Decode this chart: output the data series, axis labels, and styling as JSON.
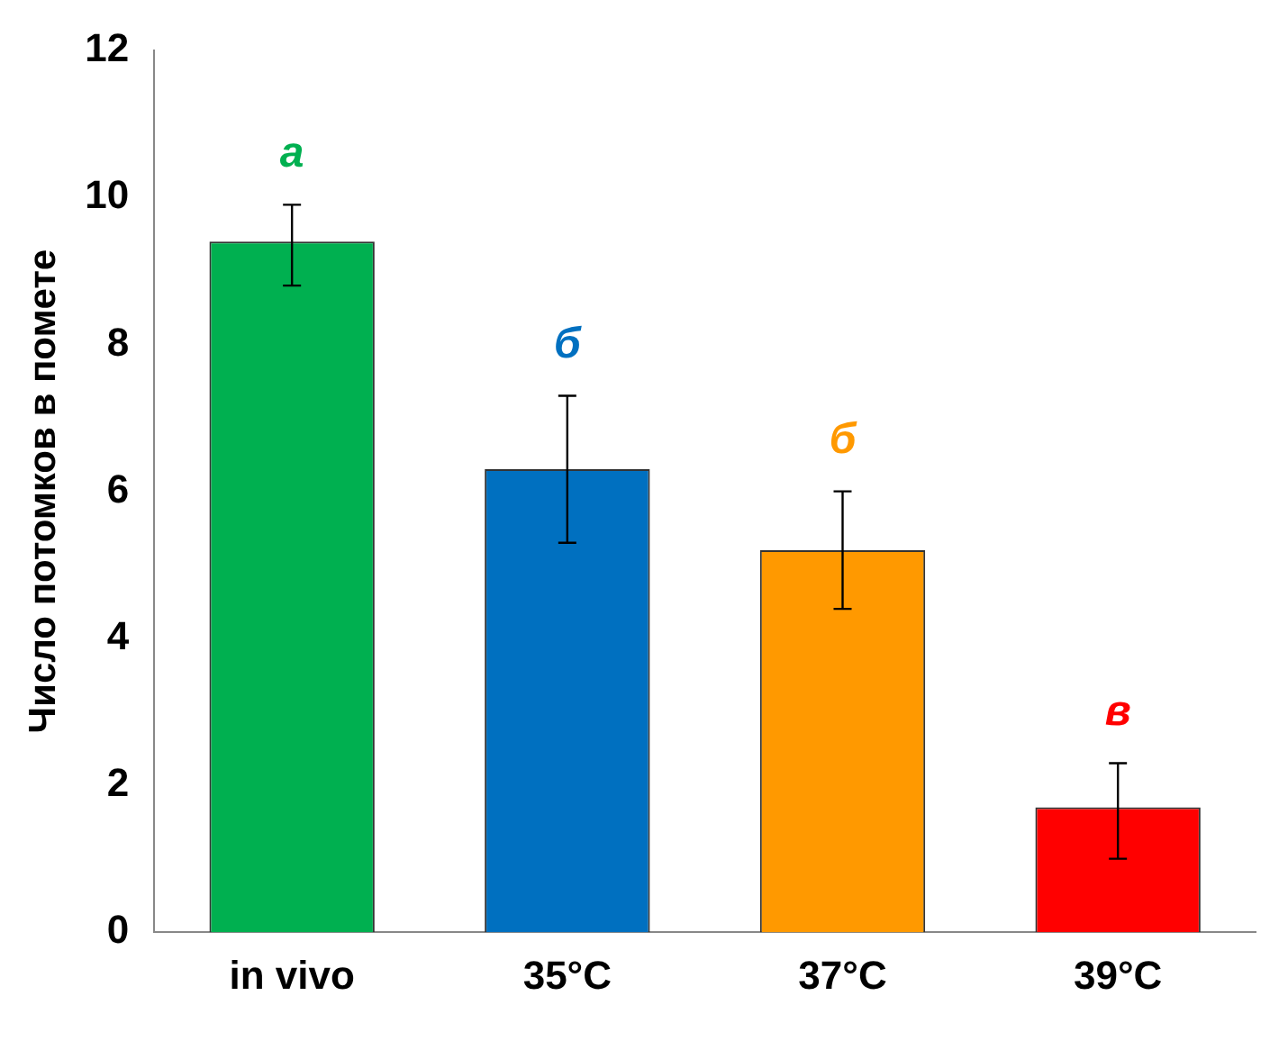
{
  "chart_data": {
    "type": "bar",
    "ylabel": "Число потомков в помете",
    "categories": [
      "in vivo",
      "35°C",
      "37°C",
      "39°C"
    ],
    "values": [
      9.4,
      6.3,
      5.2,
      1.7
    ],
    "colors": [
      "#00b050",
      "#0070c0",
      "#ff9900",
      "#ff0000"
    ],
    "errors": [
      [
        8.8,
        9.9
      ],
      [
        5.3,
        7.3
      ],
      [
        4.4,
        6.0
      ],
      [
        1.0,
        2.3
      ]
    ],
    "ylim": [
      0,
      12
    ],
    "yticks": [
      0,
      2,
      4,
      6,
      8,
      10,
      12
    ],
    "grid": false,
    "legend": false,
    "annotations": [
      "а",
      "б",
      "б",
      "в"
    ]
  }
}
